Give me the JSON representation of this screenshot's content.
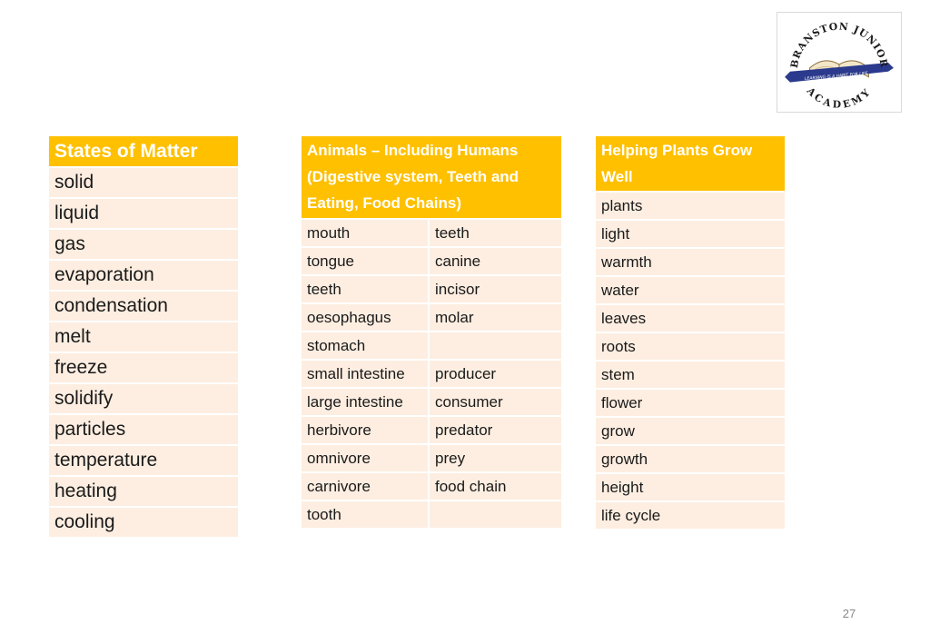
{
  "logo": {
    "name_top": "BRANSTON JUNIOR",
    "name_bottom": "ACADEMY",
    "motto": "LEARNING IS A HABIT FOR LIFE",
    "colors": {
      "ring_text": "#1a1a1a",
      "banner": "#2b3a8c",
      "book": "#f2e6c9"
    }
  },
  "states_of_matter": {
    "title": "States of Matter",
    "words": [
      "solid",
      "liquid",
      "gas",
      "evaporation",
      "condensation",
      "melt",
      "freeze",
      "solidify",
      "particles",
      "temperature",
      "heating",
      "cooling"
    ]
  },
  "animals": {
    "title": "Animals – Including Humans (Digestive system, Teeth and Eating, Food Chains)",
    "rows": [
      [
        "mouth",
        "teeth"
      ],
      [
        "tongue",
        "canine"
      ],
      [
        "teeth",
        "incisor"
      ],
      [
        "oesophagus",
        "molar"
      ],
      [
        "stomach",
        ""
      ],
      [
        "small intestine",
        "producer"
      ],
      [
        "large intestine",
        "consumer"
      ],
      [
        "herbivore",
        "predator"
      ],
      [
        "omnivore",
        "prey"
      ],
      [
        "carnivore",
        "food chain"
      ],
      [
        "tooth",
        ""
      ]
    ]
  },
  "plants": {
    "title": "Helping Plants Grow Well",
    "words": [
      "plants",
      "light",
      "warmth",
      "water",
      "leaves",
      "roots",
      "stem",
      "flower",
      "grow",
      "growth",
      "height",
      "life cycle"
    ]
  },
  "page_number": "27",
  "colors": {
    "header": "#ffc000",
    "row_light": "#fdeee1",
    "row_lighter": "#fef6ef"
  }
}
